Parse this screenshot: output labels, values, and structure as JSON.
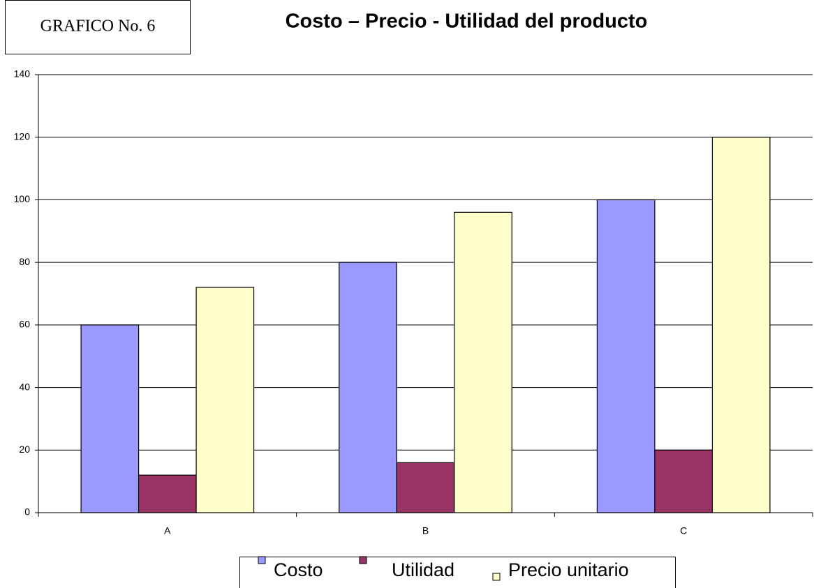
{
  "chart_data": {
    "type": "bar",
    "label": "GRAFICO No. 6",
    "title": "Costo – Precio - Utilidad del producto",
    "categories": [
      "A",
      "B",
      "C"
    ],
    "series": [
      {
        "name": "Costo",
        "color": "#9999ff",
        "values": [
          60,
          80,
          100
        ]
      },
      {
        "name": "Utilidad",
        "color": "#993366",
        "values": [
          12,
          16,
          20
        ]
      },
      {
        "name": "Precio unitario",
        "color": "#ffffcc",
        "values": [
          72,
          96,
          120
        ]
      }
    ],
    "ylim": [
      0,
      140
    ],
    "yticks": [
      0,
      20,
      40,
      60,
      80,
      100,
      120,
      140
    ],
    "grid": true,
    "legend": "bottom"
  }
}
